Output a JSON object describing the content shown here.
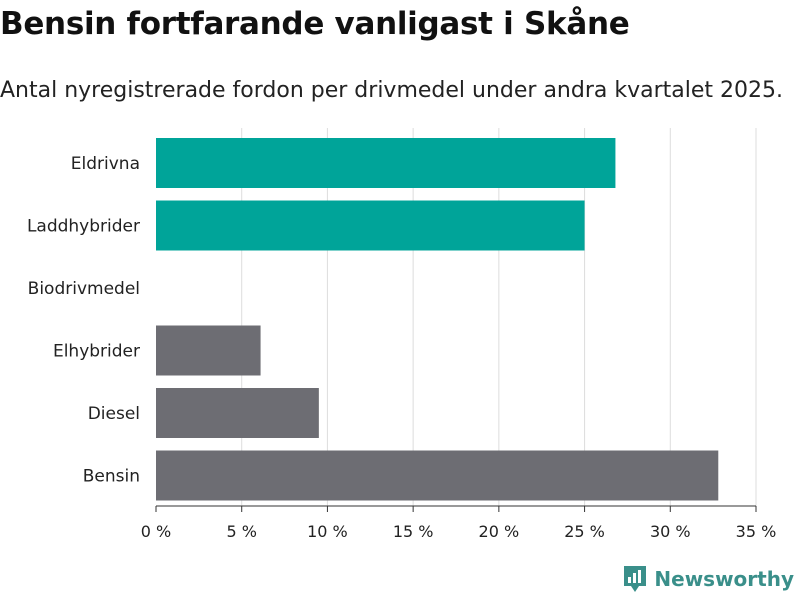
{
  "header": {
    "title": "Bensin fortfarande vanligast i Skåne",
    "subtitle": "Antal nyregistrerade fordon per drivmedel under andra kvartalet 2025."
  },
  "chart_data": {
    "type": "bar",
    "orientation": "horizontal",
    "categories": [
      "Eldrivna",
      "Laddhybrider",
      "Biodrivmedel",
      "Elhybrider",
      "Diesel",
      "Bensin"
    ],
    "values": [
      26.8,
      25.0,
      0,
      6.1,
      9.5,
      32.8
    ],
    "bar_colors": [
      "#00a499",
      "#00a499",
      "#00a499",
      "#6d6d73",
      "#6d6d73",
      "#6d6d73"
    ],
    "xlim": [
      0,
      35
    ],
    "xticks": [
      0,
      5,
      10,
      15,
      20,
      25,
      30,
      35
    ],
    "xtick_labels": [
      "0 %",
      "5 %",
      "10 %",
      "15 %",
      "20 %",
      "25 %",
      "30 %",
      "35 %"
    ],
    "grid": true
  },
  "brand": {
    "name": "Newsworthy",
    "icon": "bar-chart-badge-icon",
    "color": "#3a8f8a"
  }
}
